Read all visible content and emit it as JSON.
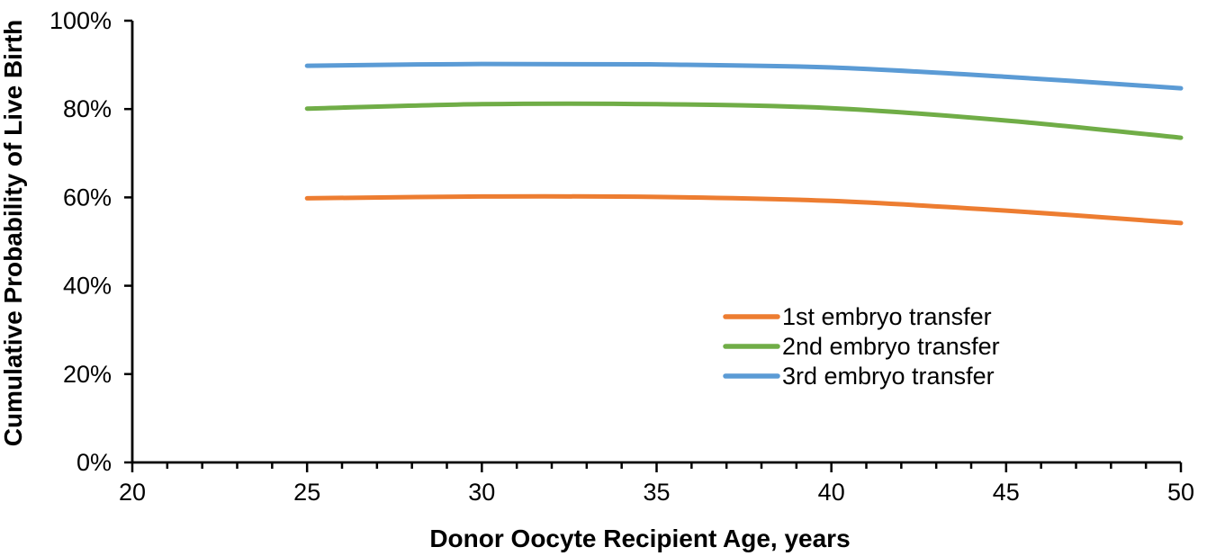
{
  "chart_data": {
    "type": "line",
    "title": "",
    "xlabel": "Donor Oocyte Recipient Age, years",
    "ylabel": "Cumulative Probability of Live Birth",
    "x": [
      25,
      30,
      35,
      40,
      45,
      50
    ],
    "series": [
      {
        "name": "1st embryo transfer",
        "color": "#ED7D31",
        "values": [
          59.8,
          60.2,
          60.1,
          59.2,
          57.0,
          54.2
        ]
      },
      {
        "name": "2nd embryo transfer",
        "color": "#70AD47",
        "values": [
          80.1,
          81.1,
          81.1,
          80.2,
          77.4,
          73.5
        ]
      },
      {
        "name": "3rd embryo transfer",
        "color": "#5B9BD5",
        "values": [
          89.8,
          90.2,
          90.1,
          89.4,
          87.3,
          84.7
        ]
      }
    ],
    "xlim": [
      20,
      50
    ],
    "ylim": [
      0,
      100
    ],
    "x_major_ticks": [
      20,
      25,
      30,
      35,
      40,
      45,
      50
    ],
    "x_tick_labels": [
      "20",
      "25",
      "30",
      "35",
      "40",
      "45",
      "50"
    ],
    "x_minor_tick_step": 1,
    "y_major_ticks": [
      0,
      20,
      40,
      60,
      80,
      100
    ],
    "y_tick_labels": [
      "0%",
      "20%",
      "40%",
      "60%",
      "80%",
      "100%"
    ],
    "grid": false,
    "legend_position": "inside-center-right",
    "axis_color": "#000000",
    "background_color": "#FFFFFF",
    "line_width": 5
  }
}
